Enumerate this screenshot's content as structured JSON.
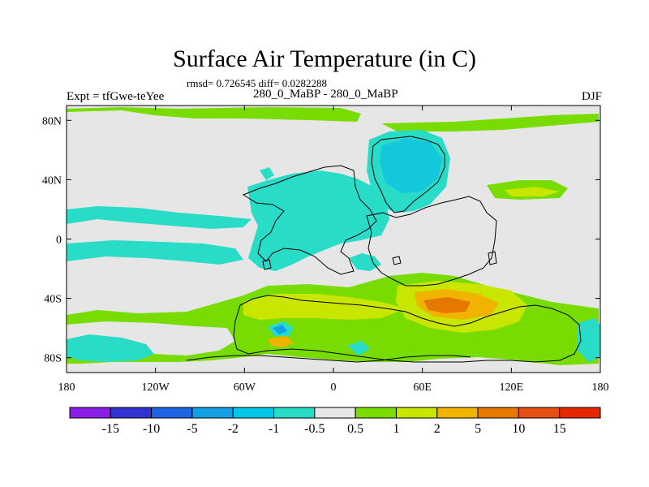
{
  "title": "Surface Air Temperature (in C)",
  "stats": "rmsd= 0.726545 diff= 0.0282288",
  "experiment": "Expt = tfGwe-teYee",
  "comparison": "280_0_MaBP - 280_0_MaBP",
  "season": "DJF",
  "axes": {
    "x_ticks": [
      "180",
      "120W",
      "60W",
      "0",
      "60E",
      "120E",
      "180"
    ],
    "y_ticks": [
      "80N",
      "40N",
      "0",
      "40S",
      "80S"
    ],
    "x_range_deg": [
      -180,
      180
    ],
    "y_range_deg": [
      -90,
      90
    ]
  },
  "colorbar": {
    "labels": [
      "-15",
      "-10",
      "-5",
      "-2",
      "-1",
      "-0.5",
      "0.5",
      "1",
      "2",
      "5",
      "10",
      "15"
    ],
    "colors": [
      "#8a1ee6",
      "#3232d2",
      "#1e64e6",
      "#14a0e6",
      "#00c8e6",
      "#28dcc8",
      "#e6e6e6",
      "#78dc00",
      "#c8e600",
      "#f0b400",
      "#e67800",
      "#e65014",
      "#e62800"
    ]
  },
  "map_colors": {
    "neutral": "#e6e6e6",
    "cool_light": "#28dcc8",
    "cool": "#14c8dc",
    "cool_strong": "#14a0e6",
    "warm_light": "#78dc00",
    "warm": "#c8e600",
    "warm_strong": "#f0b400",
    "hot": "#e67800",
    "coast": "#000000"
  }
}
